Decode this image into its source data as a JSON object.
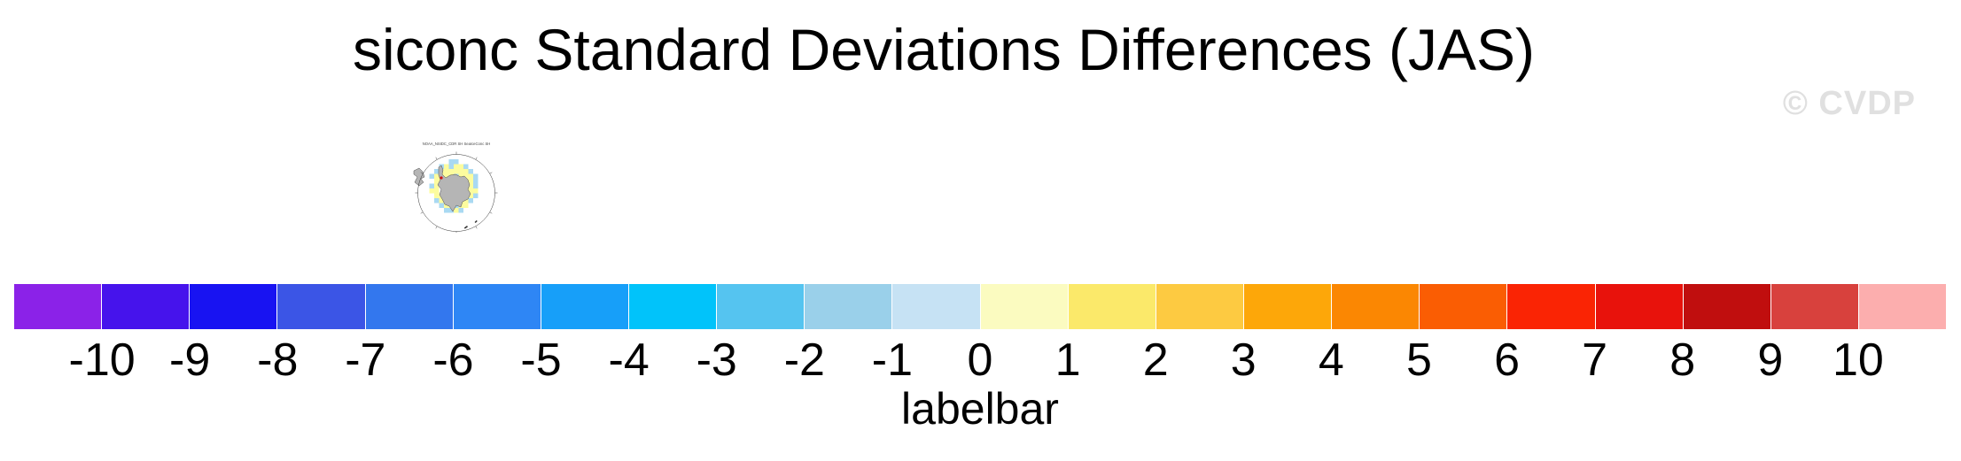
{
  "title": "siconc Standard Deviations Differences (JAS)",
  "watermark": "© CVDP",
  "colors": {
    "watermark": "#e0e0e0",
    "text": "#000000",
    "background": "#ffffff"
  },
  "mini_map": {
    "title": "NOAA_NSIDC_CDR SH SeaIceConc SH",
    "land_color": "#b5b5b5",
    "land_outline": "#4d4d4d",
    "positive_color": "#fcfc9e",
    "negative_color": "#a9d9f2",
    "marker_color": "#d01010",
    "outline_color": "#333333",
    "cell_size": 5.5,
    "grid_origin": [
      21,
      25
    ],
    "grid": [
      ".....bb......",
      "...bybyyb....",
      "..byyyyyyb...",
      ".byyyybyyyb..",
      "..yy....yyb..",
      ".by......yb..",
      ".yy......yy..",
      "..yy....yyb..",
      "..byyyyyyb...",
      "...byybyy....",
      "....bbyb....."
    ]
  },
  "chart_data": {
    "type": "labelbar",
    "title": "labelbar",
    "orientation": "horizontal",
    "tick_labels": [
      "-10",
      "-9",
      "-8",
      "-7",
      "-6",
      "-5",
      "-4",
      "-3",
      "-2",
      "-1",
      "0",
      "1",
      "2",
      "3",
      "4",
      "5",
      "6",
      "7",
      "8",
      "9",
      "10"
    ],
    "cell_colors": [
      "#8b22e8",
      "#4613ec",
      "#1813f2",
      "#3b55e6",
      "#3377ee",
      "#2e86f5",
      "#179ff9",
      "#01c3fa",
      "#55c4f0",
      "#9ad0ea",
      "#c6e2f4",
      "#fbfbc0",
      "#fbe96a",
      "#fdca41",
      "#fda709",
      "#fb8702",
      "#fa5d03",
      "#fa2404",
      "#e8120c",
      "#c00e0e",
      "#d8413d",
      "#fcaeae"
    ]
  }
}
